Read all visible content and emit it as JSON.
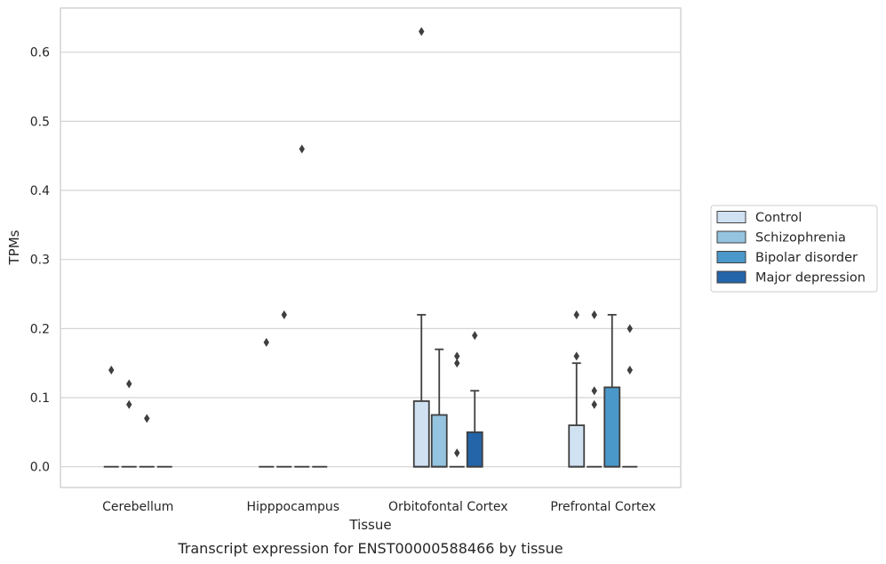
{
  "chart_data": {
    "type": "box",
    "title": "",
    "caption": "Transcript expression for ENST00000588466 by tissue",
    "xlabel": "Tissue",
    "ylabel": "TPMs",
    "ylim": [
      -0.03,
      0.664
    ],
    "yticks": [
      0.0,
      0.1,
      0.2,
      0.3,
      0.4,
      0.5,
      0.6
    ],
    "ytick_labels": [
      "0.0",
      "0.1",
      "0.2",
      "0.3",
      "0.4",
      "0.5",
      "0.6"
    ],
    "grid": "horizontal",
    "legend_position": "right",
    "categories": [
      "Cerebellum",
      "Hipppocampus",
      "Orbitofontal Cortex",
      "Prefrontal Cortex"
    ],
    "series": [
      {
        "name": "Control",
        "color": "#d0e1f2",
        "boxes": [
          {
            "q1": 0,
            "median": 0,
            "q3": 0,
            "whisker_low": 0,
            "whisker_high": 0,
            "outliers": [
              0.14
            ]
          },
          {
            "q1": 0,
            "median": 0,
            "q3": 0,
            "whisker_low": 0,
            "whisker_high": 0,
            "outliers": [
              0.18
            ]
          },
          {
            "q1": 0,
            "median": 0,
            "q3": 0.095,
            "whisker_low": 0,
            "whisker_high": 0.22,
            "outliers": [
              0.63
            ]
          },
          {
            "q1": 0,
            "median": 0,
            "q3": 0.06,
            "whisker_low": 0,
            "whisker_high": 0.15,
            "outliers": [
              0.16,
              0.22
            ]
          }
        ]
      },
      {
        "name": "Schizophrenia",
        "color": "#94c4df",
        "boxes": [
          {
            "q1": 0,
            "median": 0,
            "q3": 0,
            "whisker_low": 0,
            "whisker_high": 0,
            "outliers": [
              0.09,
              0.12
            ]
          },
          {
            "q1": 0,
            "median": 0,
            "q3": 0,
            "whisker_low": 0,
            "whisker_high": 0,
            "outliers": [
              0.22
            ]
          },
          {
            "q1": 0,
            "median": 0,
            "q3": 0.075,
            "whisker_low": 0,
            "whisker_high": 0.17,
            "outliers": []
          },
          {
            "q1": 0,
            "median": 0,
            "q3": 0,
            "whisker_low": 0,
            "whisker_high": 0,
            "outliers": [
              0.09,
              0.11,
              0.22
            ]
          }
        ]
      },
      {
        "name": "Bipolar disorder",
        "color": "#4a98c9",
        "boxes": [
          {
            "q1": 0,
            "median": 0,
            "q3": 0,
            "whisker_low": 0,
            "whisker_high": 0,
            "outliers": [
              0.07
            ]
          },
          {
            "q1": 0,
            "median": 0,
            "q3": 0,
            "whisker_low": 0,
            "whisker_high": 0,
            "outliers": [
              0.46
            ]
          },
          {
            "q1": 0,
            "median": 0,
            "q3": 0,
            "whisker_low": 0,
            "whisker_high": 0,
            "outliers": [
              0.02,
              0.15,
              0.16
            ]
          },
          {
            "q1": 0,
            "median": 0,
            "q3": 0.115,
            "whisker_low": 0,
            "whisker_high": 0.22,
            "outliers": []
          }
        ]
      },
      {
        "name": "Major depression",
        "color": "#2464a8",
        "boxes": [
          {
            "q1": 0,
            "median": 0,
            "q3": 0,
            "whisker_low": 0,
            "whisker_high": 0,
            "outliers": []
          },
          {
            "q1": 0,
            "median": 0,
            "q3": 0,
            "whisker_low": 0,
            "whisker_high": 0,
            "outliers": []
          },
          {
            "q1": 0,
            "median": 0,
            "q3": 0.05,
            "whisker_low": 0,
            "whisker_high": 0.11,
            "outliers": [
              0.19
            ]
          },
          {
            "q1": 0,
            "median": 0,
            "q3": 0,
            "whisker_low": 0,
            "whisker_high": 0,
            "outliers": [
              0.14,
              0.2
            ]
          }
        ]
      }
    ],
    "colors": {
      "grid": "#d4d4d4",
      "frame": "#cccccc",
      "stroke": "#3f3f3f",
      "text": "#262626"
    }
  }
}
